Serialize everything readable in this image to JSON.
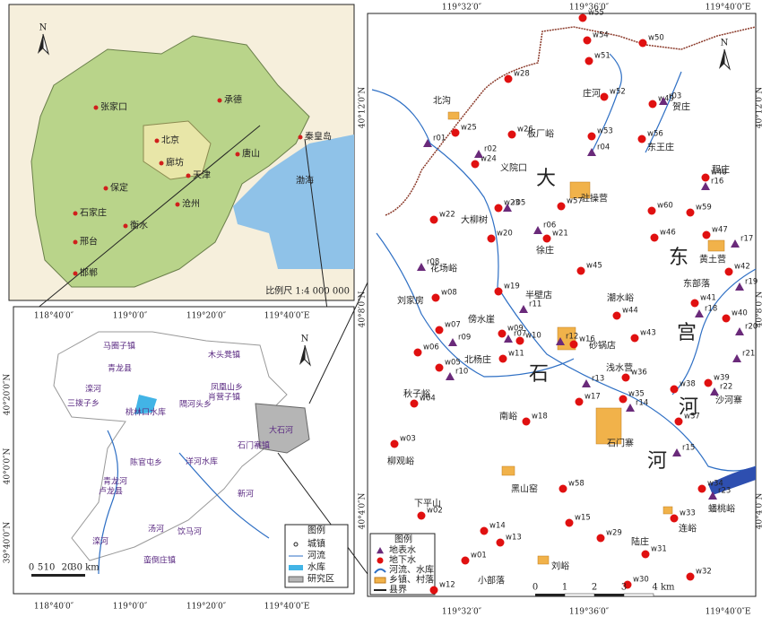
{
  "regional_map": {
    "north": "N",
    "cities": [
      "张家口",
      "承德",
      "北京",
      "廊坊",
      "秦皇岛",
      "唐山",
      "保定",
      "天津",
      "石家庄",
      "沧州",
      "衡水",
      "邢台",
      "邯郸"
    ],
    "sea": "渤海",
    "scale": "比例尺 1:4 000 000"
  },
  "county_map": {
    "north": "N",
    "lon_labels": [
      "118°40′0″",
      "119°0′0″",
      "119°20′0″",
      "119°40′0″E"
    ],
    "lat_labels": [
      "40°20′0″N",
      "40°0′0″N",
      "39°40′0″N"
    ],
    "places": [
      "马圈子镇",
      "木头凳镇",
      "青龙县",
      "滦河",
      "凤凰山乡",
      "三拨子乡",
      "肖营子镇",
      "桃林口水库",
      "隔河头乡",
      "大石河",
      "石门寨镇",
      "洋河水库",
      "陈官屯乡",
      "青龙河",
      "卢龙县",
      "新河",
      "汤河",
      "饮马河",
      "滦河",
      "蛮倒庄镇"
    ],
    "legend": {
      "title": "图例",
      "items": [
        "城镇",
        "河流",
        "水库",
        "研究区"
      ]
    },
    "scale": [
      "0",
      "5",
      "10",
      "20",
      "30 km"
    ]
  },
  "study_map": {
    "north": "N",
    "lon_labels": [
      "119°32′0″",
      "119°36′0″",
      "119°40′0″E"
    ],
    "lat_labels": [
      "40°12′0″N",
      "40°8′0″N",
      "40°4′0″N"
    ],
    "points": [
      "w55",
      "w54",
      "w50",
      "w51",
      "w28",
      "w52",
      "w49",
      "r03",
      "w25",
      "r01",
      "w26",
      "w53",
      "r04",
      "w56",
      "w24",
      "r02",
      "w48",
      "r16",
      "w23",
      "r05",
      "w57",
      "w60",
      "w59",
      "w22",
      "r06",
      "w21",
      "w20",
      "w46",
      "w47",
      "r17",
      "r08",
      "w45",
      "w42",
      "r19",
      "w19",
      "w08",
      "r11",
      "w41",
      "r18",
      "w44",
      "w07",
      "r09",
      "w09",
      "r07",
      "r12",
      "w16",
      "w10",
      "w43",
      "w40",
      "r20",
      "w06",
      "w11",
      "r13",
      "w36",
      "r21",
      "w05",
      "r10",
      "w39",
      "r22",
      "w38",
      "w17",
      "w35",
      "r14",
      "w04",
      "w37",
      "w18",
      "w03",
      "r15",
      "w58",
      "w34",
      "r23",
      "w02",
      "w33",
      "w15",
      "w14",
      "w13",
      "w29",
      "w01",
      "w31",
      "w32",
      "w30",
      "w12"
    ],
    "places": [
      "北沟",
      "庄河",
      "贺庄",
      "板厂峪",
      "东王庄",
      "义院口",
      "大",
      "驻操营",
      "程庄",
      "大柳树",
      "徐庄",
      "黄土营",
      "东",
      "东部落",
      "花场峪",
      "刘家房",
      "半壁店",
      "潮水峪",
      "宫",
      "傍水崖",
      "砂锅店",
      "北杨庄",
      "石",
      "浅水营",
      "秋子峪",
      "河",
      "沙河寨",
      "南峪",
      "石门寨",
      "河",
      "柳观峪",
      "黑山窑",
      "下平山",
      "蟠桃峪",
      "连峪",
      "陆庄",
      "刘峪",
      "小部落"
    ],
    "legend": {
      "title": "图例",
      "items": [
        "地表水",
        "地下水",
        "河流、水库",
        "乡镇、村落",
        "县界"
      ]
    },
    "scale": [
      "0",
      "1",
      "2",
      "3",
      "4 km"
    ]
  }
}
